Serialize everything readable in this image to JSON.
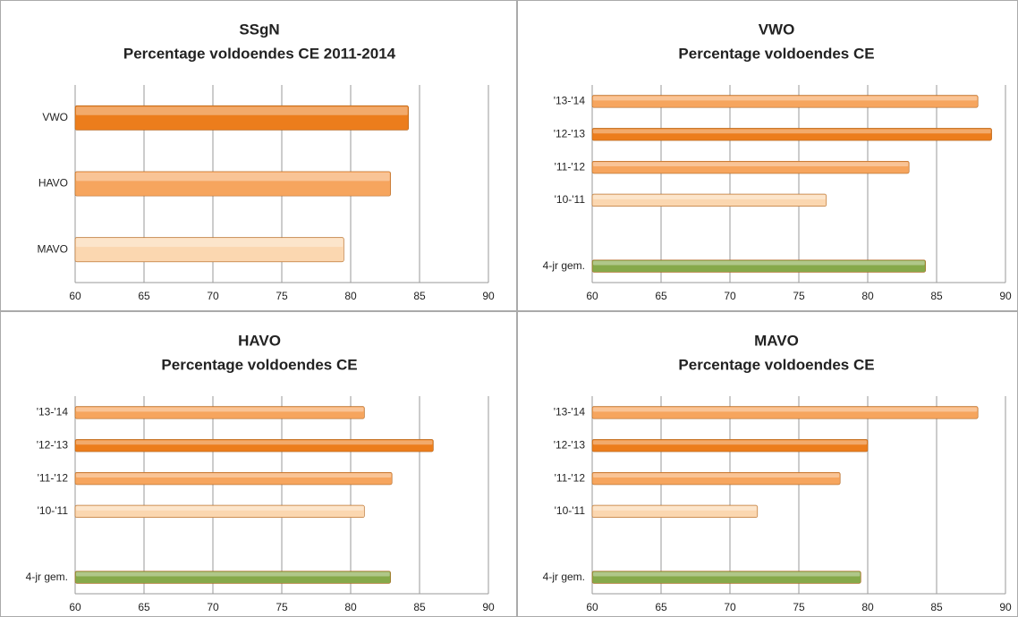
{
  "chart_data": [
    {
      "type": "hbar",
      "title": "SSgN",
      "subtitle": "Percentage voldoendes CE   2011-2014",
      "categories": [
        "VWO",
        "HAVO",
        "MAVO"
      ],
      "values": [
        84.2,
        82.9,
        79.5
      ],
      "colors": [
        "#ec7d1c",
        "#f6a55e",
        "#fbd7b0"
      ],
      "xlim": [
        60,
        90
      ],
      "xticks": [
        60,
        65,
        70,
        75,
        80,
        85,
        90
      ],
      "grid": true
    },
    {
      "type": "hbar",
      "title": "VWO",
      "subtitle": "Percentage voldoendes CE",
      "categories": [
        "'13-'14",
        "'12-'13",
        "'11-'12",
        "'10-'11",
        null,
        "4-jr gem."
      ],
      "values": [
        88,
        89,
        83,
        77,
        null,
        84.2
      ],
      "colors": [
        "#f6a55e",
        "#ec7d1c",
        "#f6a55e",
        "#fbd7b0",
        null,
        "#86a94a"
      ],
      "xlim": [
        60,
        90
      ],
      "xticks": [
        60,
        65,
        70,
        75,
        80,
        85,
        90
      ],
      "grid": true
    },
    {
      "type": "hbar",
      "title": "HAVO",
      "subtitle": "Percentage voldoendes CE",
      "categories": [
        "'13-'14",
        "'12-'13",
        "'11-'12",
        "'10-'11",
        null,
        "4-jr gem."
      ],
      "values": [
        81,
        86,
        83,
        81,
        null,
        82.9
      ],
      "colors": [
        "#f6a55e",
        "#ec7d1c",
        "#f6a55e",
        "#fbd7b0",
        null,
        "#86a94a"
      ],
      "xlim": [
        60,
        90
      ],
      "xticks": [
        60,
        65,
        70,
        75,
        80,
        85,
        90
      ],
      "grid": true
    },
    {
      "type": "hbar",
      "title": "MAVO",
      "subtitle": "Percentage voldoendes CE",
      "categories": [
        "'13-'14",
        "'12-'13",
        "'11-'12",
        "'10-'11",
        null,
        "4-jr gem."
      ],
      "values": [
        88,
        80,
        78,
        72,
        null,
        79.5
      ],
      "colors": [
        "#f6a55e",
        "#ec7d1c",
        "#f6a55e",
        "#fbd7b0",
        null,
        "#86a94a"
      ],
      "xlim": [
        60,
        90
      ],
      "xticks": [
        60,
        65,
        70,
        75,
        80,
        85,
        90
      ],
      "grid": true
    }
  ]
}
